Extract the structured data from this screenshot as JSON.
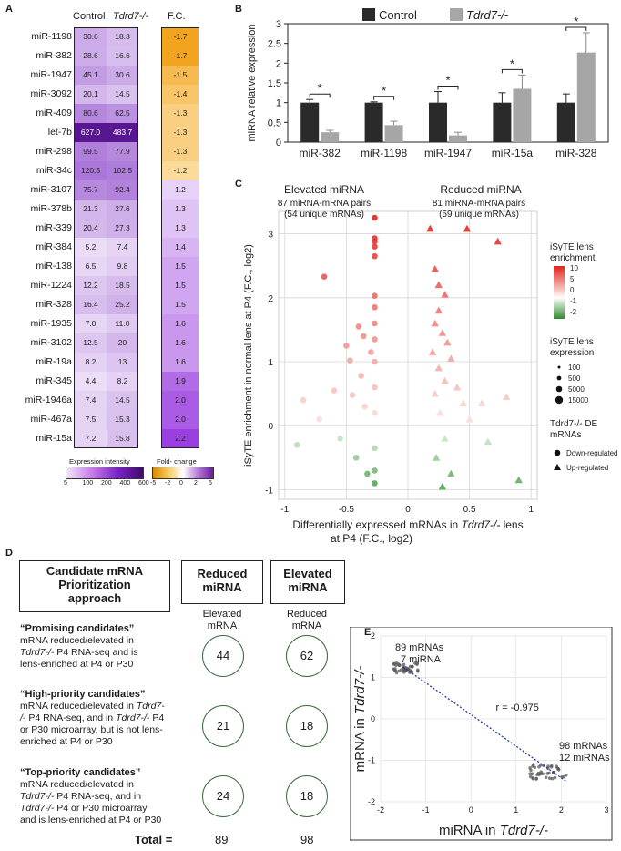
{
  "labels": {
    "A": "A",
    "B": "B",
    "C": "C",
    "D": "D",
    "E": "E"
  },
  "panelA": {
    "col_control": "Control",
    "col_ko": "Tdrd7-/-",
    "col_fc": "F.C.",
    "rows": [
      {
        "mirna": "miR-1198",
        "control": "30.6",
        "ko": "18.3",
        "fc": "-1.7"
      },
      {
        "mirna": "miR-382",
        "control": "28.6",
        "ko": "16.6",
        "fc": "-1.7"
      },
      {
        "mirna": "miR-1947",
        "control": "45.1",
        "ko": "30.6",
        "fc": "-1.5"
      },
      {
        "mirna": "miR-3092",
        "control": "20.1",
        "ko": "14.5",
        "fc": "-1.4"
      },
      {
        "mirna": "miR-409",
        "control": "80.6",
        "ko": "62.5",
        "fc": "-1.3"
      },
      {
        "mirna": "let-7b",
        "control": "627.0",
        "ko": "483.7",
        "fc": "-1.3"
      },
      {
        "mirna": "miR-298",
        "control": "99.5",
        "ko": "77.9",
        "fc": "-1.3"
      },
      {
        "mirna": "miR-34c",
        "control": "120.5",
        "ko": "102.5",
        "fc": "-1.2"
      },
      {
        "mirna": "miR-3107",
        "control": "75.7",
        "ko": "92.4",
        "fc": "1.2"
      },
      {
        "mirna": "miR-378b",
        "control": "21.3",
        "ko": "27.6",
        "fc": "1.3"
      },
      {
        "mirna": "miR-339",
        "control": "20.4",
        "ko": "27.3",
        "fc": "1.3"
      },
      {
        "mirna": "miR-384",
        "control": "5.2",
        "ko": "7.4",
        "fc": "1.4"
      },
      {
        "mirna": "miR-138",
        "control": "6.5",
        "ko": "9.8",
        "fc": "1.5"
      },
      {
        "mirna": "miR-1224",
        "control": "12.2",
        "ko": "18.5",
        "fc": "1.5"
      },
      {
        "mirna": "miR-328",
        "control": "16.4",
        "ko": "25.2",
        "fc": "1.5"
      },
      {
        "mirna": "miR-1935",
        "control": "7.0",
        "ko": "11.0",
        "fc": "1.6"
      },
      {
        "mirna": "miR-3102",
        "control": "12.5",
        "ko": "20",
        "fc": "1.6"
      },
      {
        "mirna": "miR-19a",
        "control": "8.2",
        "ko": "13",
        "fc": "1.6"
      },
      {
        "mirna": "miR-345",
        "control": "4.4",
        "ko": "8.2",
        "fc": "1.9"
      },
      {
        "mirna": "miR-1946a",
        "control": "7.4",
        "ko": "14.5",
        "fc": "2.0"
      },
      {
        "mirna": "miR-467a",
        "control": "7.5",
        "ko": "15.3",
        "fc": "2.0"
      },
      {
        "mirna": "miR-15a",
        "control": "7.2",
        "ko": "15.8",
        "fc": "2.2"
      }
    ],
    "legend_expr_title": "Expression intensity",
    "legend_expr_ticks": [
      "5",
      "100",
      "200",
      "400",
      "600"
    ],
    "legend_fc_title": "Fold- change",
    "legend_fc_ticks": [
      "-5",
      "-2",
      "0",
      "2",
      "5"
    ],
    "colors": {
      "low": "#ffffff",
      "high": "#5b1a8a",
      "fc_neg": "#f4a81d",
      "fc_pos": "#8a2be2"
    }
  },
  "chart_data": [
    {
      "type": "bar",
      "panel": "B",
      "categories": [
        "miR-382",
        "miR-1198",
        "miR-1947",
        "miR-15a",
        "miR-328"
      ],
      "series": [
        {
          "name": "Control",
          "color": "#2a2a2a",
          "values": [
            1.0,
            1.0,
            1.0,
            1.0,
            1.0
          ],
          "errors": [
            0.08,
            0.02,
            0.28,
            0.25,
            0.22
          ]
        },
        {
          "name": "Tdrd7-/-",
          "color": "#a6a6a6",
          "values": [
            0.25,
            0.43,
            0.17,
            1.35,
            2.27
          ],
          "errors": [
            0.05,
            0.1,
            0.08,
            0.35,
            0.5
          ]
        }
      ],
      "significance": [
        "*",
        "*",
        "*",
        "*",
        "*"
      ],
      "ylabel": "miRNA relative expression",
      "ylim": [
        0,
        3
      ],
      "yticks": [
        "0",
        "0.5",
        "1",
        "1.5",
        "2",
        "2.5",
        "3"
      ]
    },
    {
      "type": "scatter",
      "panel": "C",
      "title_left": "Elevated miRNA",
      "title_right": "Reduced miRNA",
      "sub_left_1": "87 miRNA-mRNA pairs",
      "sub_left_2": "(54 unique mRNAs)",
      "sub_right_1": "81 miRNA-mRNA pairs",
      "sub_right_2": "(59 unique mRNAs)",
      "xlabel_1": "Differentially expressed mRNAs in ",
      "xlabel_ital": "Tdrd7-/-",
      "xlabel_2": " lens",
      "xlabel_line2": "at P4 (F.C., log2)",
      "ylabel": "iSyTE enrichment in normal lens at P4 (F.C., log2)",
      "xlim": [
        -1.05,
        1.05
      ],
      "ylim": [
        -1.15,
        3.35
      ],
      "xticks": [
        "-1",
        "-0.5",
        "0",
        "0.5",
        "1"
      ],
      "yticks": [
        "-1",
        "0",
        "1",
        "2",
        "3"
      ],
      "legend_enrich_title_1": "iSyTE lens",
      "legend_enrich_title_2": "enrichment",
      "legend_enrich_ticks": [
        "10",
        "5",
        "0",
        "-1",
        "-2"
      ],
      "legend_expr_title_1": "iSyTE lens",
      "legend_expr_title_2": "expression",
      "legend_expr_items": [
        "100",
        "500",
        "5000",
        "15000"
      ],
      "legend_de_title_1": "Tdrd7-/- DE",
      "legend_de_title_2": "mRNAs",
      "legend_de_items": [
        "Down-regulated",
        "Up-regulated"
      ],
      "points_circles": [
        [
          -0.27,
          3.25
        ],
        [
          -0.27,
          2.93
        ],
        [
          -0.27,
          2.88
        ],
        [
          -0.27,
          2.8
        ],
        [
          -0.27,
          2.65
        ],
        [
          -0.27,
          2.03
        ],
        [
          -0.27,
          1.85
        ],
        [
          -0.27,
          1.6
        ],
        [
          -0.27,
          1.35
        ],
        [
          -0.27,
          1.0
        ],
        [
          -0.27,
          0.6
        ],
        [
          -0.27,
          0.2
        ],
        [
          -0.27,
          -0.35
        ],
        [
          -0.27,
          -0.7
        ],
        [
          -0.27,
          -0.9
        ],
        [
          -0.68,
          2.33
        ],
        [
          -0.5,
          1.25
        ],
        [
          -0.47,
          1.02
        ],
        [
          -0.4,
          1.55
        ],
        [
          -0.38,
          0.78
        ],
        [
          -0.45,
          0.48
        ],
        [
          -0.35,
          0.3
        ],
        [
          -0.6,
          0.55
        ],
        [
          -0.72,
          0.1
        ],
        [
          -0.55,
          -0.2
        ],
        [
          -0.42,
          -0.5
        ],
        [
          -0.33,
          -0.75
        ],
        [
          -0.85,
          0.4
        ],
        [
          -0.3,
          1.15
        ],
        [
          -0.36,
          1.4
        ],
        [
          -0.9,
          -0.3
        ]
      ],
      "points_triangles": [
        [
          0.18,
          3.08
        ],
        [
          0.48,
          3.08
        ],
        [
          0.73,
          2.88
        ],
        [
          0.22,
          2.45
        ],
        [
          0.25,
          2.2
        ],
        [
          0.3,
          2.05
        ],
        [
          0.25,
          1.8
        ],
        [
          0.22,
          1.6
        ],
        [
          0.28,
          1.45
        ],
        [
          0.32,
          1.3
        ],
        [
          0.2,
          1.15
        ],
        [
          0.35,
          1.05
        ],
        [
          0.25,
          0.9
        ],
        [
          0.3,
          0.7
        ],
        [
          0.22,
          0.5
        ],
        [
          0.4,
          0.6
        ],
        [
          0.45,
          0.35
        ],
        [
          0.26,
          0.2
        ],
        [
          0.3,
          -0.2
        ],
        [
          0.23,
          -0.5
        ],
        [
          0.35,
          -0.75
        ],
        [
          0.28,
          -0.95
        ],
        [
          0.5,
          0.1
        ],
        [
          0.6,
          0.35
        ],
        [
          0.65,
          -0.25
        ],
        [
          0.9,
          -0.85
        ],
        [
          0.8,
          0.45
        ]
      ]
    },
    {
      "type": "scatter",
      "panel": "E",
      "label_top_1": "89 mRNAs",
      "label_top_2": "7 miRNA",
      "label_bottom_1": "98 mRNAs",
      "label_bottom_2": "12 miRNAs",
      "r_label": "r = -0.975",
      "xlabel_1": "miRNA in ",
      "xlabel_ital": "Tdrd7-/-",
      "ylabel_1": "mRNA in ",
      "ylabel_ital": "Tdrd7-/-",
      "xlim": [
        -2,
        3
      ],
      "ylim": [
        -2,
        2
      ],
      "xticks": [
        "-2",
        "-1",
        "0",
        "1",
        "2",
        "3"
      ],
      "yticks": [
        "-2",
        "-1",
        "0",
        "1",
        "2"
      ],
      "trend": [
        [
          -1.5,
          1.25
        ],
        [
          2.1,
          -1.5
        ]
      ],
      "cluster_top": {
        "x": [
          -1.75,
          -1.15
        ],
        "y": [
          1.1,
          1.35
        ]
      },
      "cluster_bottom": {
        "x": [
          1.3,
          2.2
        ],
        "y": [
          -1.45,
          -1.1
        ]
      }
    }
  ],
  "panelB_legend": {
    "control": "Control",
    "ko": "Tdrd7-/-"
  },
  "panelD": {
    "header_left_1": "Candidate mRNA",
    "header_left_2": "Prioritization",
    "header_left_3": "approach",
    "header_reduced_1": "Reduced",
    "header_reduced_2": "miRNA",
    "header_elevated_1": "Elevated",
    "header_elevated_2": "miRNA",
    "sub_reduced_1": "Elevated",
    "sub_reduced_2": "mRNA",
    "sub_elevated_1": "Reduced",
    "sub_elevated_2": "mRNA",
    "row1_title": "“Promising candidates”",
    "row1_l1": "mRNA reduced/elevated in",
    "row1_l2_ital": "Tdrd7-/-",
    "row1_l2": " P4 RNA-seq and is",
    "row1_l3": "lens-enriched at P4 or P30",
    "row1_reduced": "44",
    "row1_elevated": "62",
    "row2_title": "“High-priority candidates”",
    "row2_l1": "mRNA reduced/elevated in ",
    "row2_l1_ital": "Tdrd7-",
    "row2_l2_ital": "/-",
    "row2_l2": " P4 RNA-seq, and in ",
    "row2_l2b_ital": "Tdrd7-/-",
    "row2_l2c": " P4",
    "row2_l3": "or P30 microarray, but is not lens-",
    "row2_l4": "enriched at P4 or P30",
    "row2_reduced": "21",
    "row2_elevated": "18",
    "row3_title": "“Top-priority candidates”",
    "row3_l1": "mRNA reduced/elevated in",
    "row3_l2_ital": "Tdrd7-/-",
    "row3_l2": " P4 RNA-seq, and in",
    "row3_l3_ital": "Tdrd7-/-",
    "row3_l3": " P4 or P30 microarray",
    "row3_l4": "and is lens-enriched at P4 or P30",
    "row3_reduced": "24",
    "row3_elevated": "18",
    "total_label": "Total =",
    "total_reduced": "89",
    "total_elevated": "98"
  }
}
